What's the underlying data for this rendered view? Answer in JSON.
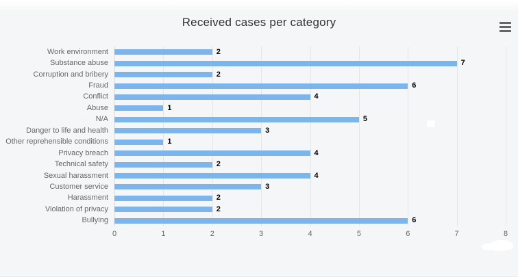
{
  "header": {
    "title": "Received cases per category",
    "menu_icon": "hamburger-icon"
  },
  "colors": {
    "bar": "#7cb5ec",
    "background": "#f5f6f7",
    "gridline": "#e6e6e6",
    "title_text": "#333333",
    "axis_label_text": "#666666",
    "data_label_text": "#000000",
    "menu_icon": "#666666"
  },
  "chart_data": {
    "type": "bar",
    "orientation": "horizontal",
    "title": "Received cases per category",
    "categories": [
      "Work environment",
      "Substance abuse",
      "Corruption and bribery",
      "Fraud",
      "Conflict",
      "Abuse",
      "N/A",
      "Danger to life and health",
      "Other reprehensible conditions",
      "Privacy breach",
      "Technical safety",
      "Sexual harassment",
      "Customer service",
      "Harassment",
      "Violation of privacy",
      "Bullying"
    ],
    "values": [
      2,
      7,
      2,
      6,
      4,
      1,
      5,
      3,
      1,
      4,
      2,
      4,
      3,
      2,
      2,
      6
    ],
    "xlabel": "",
    "ylabel": "",
    "xlim": [
      0,
      8
    ],
    "x_ticks": [
      "0",
      "1",
      "2",
      "3",
      "4",
      "5",
      "6",
      "7",
      "8"
    ],
    "grid": true,
    "legend": "none",
    "data_labels": true
  }
}
